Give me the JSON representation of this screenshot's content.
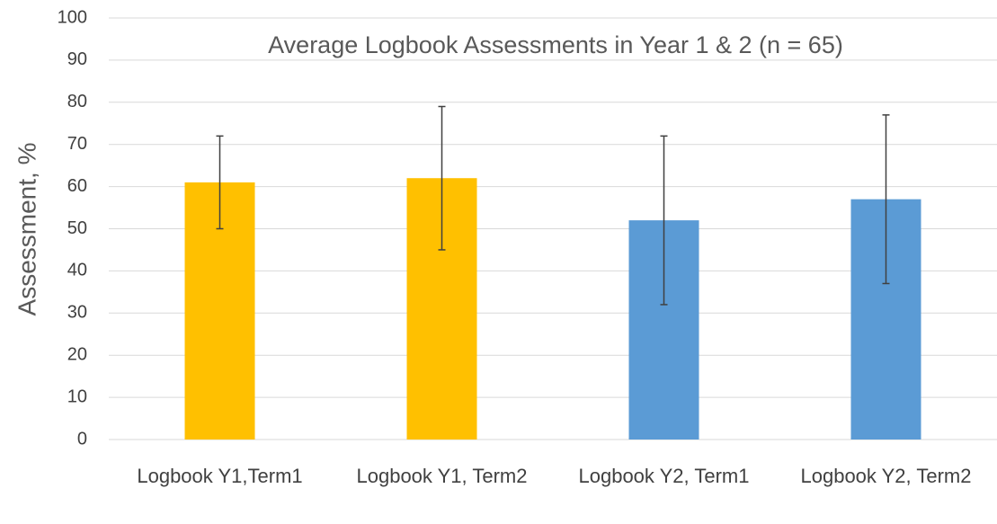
{
  "chart_data": {
    "type": "bar",
    "title": "Average Logbook Assessments in Year 1 & 2 (n = 65)",
    "ylabel": "Assessment, %",
    "categories": [
      "Logbook Y1,Term1",
      "Logbook Y1, Term2",
      "Logbook Y2, Term1",
      "Logbook Y2, Term2"
    ],
    "values": [
      61,
      62,
      52,
      57
    ],
    "errors": [
      11,
      17,
      20,
      20
    ],
    "colors": [
      "#ffc000",
      "#ffc000",
      "#5b9bd5",
      "#5b9bd5"
    ],
    "ylim": [
      0,
      100
    ],
    "yticks": [
      0,
      10,
      20,
      30,
      40,
      50,
      60,
      70,
      80,
      90,
      100
    ],
    "grid": true
  }
}
